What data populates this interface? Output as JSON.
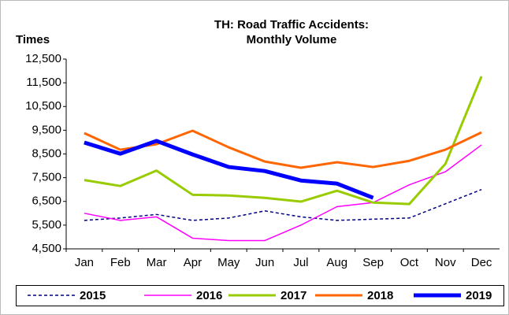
{
  "chart_data": {
    "type": "line",
    "title": [
      "TH: Road Traffic Accidents:",
      "Monthly Volume"
    ],
    "y_label": "Times",
    "categories": [
      "Jan",
      "Feb",
      "Mar",
      "Apr",
      "May",
      "Jun",
      "Jul",
      "Aug",
      "Sep",
      "Oct",
      "Nov",
      "Dec"
    ],
    "ylim": [
      4500,
      12500
    ],
    "yticks": [
      {
        "value": 4500,
        "label": "4,500"
      },
      {
        "value": 5500,
        "label": "5,500"
      },
      {
        "value": 6500,
        "label": "6,500"
      },
      {
        "value": 7500,
        "label": "7,500"
      },
      {
        "value": 8500,
        "label": "8,500"
      },
      {
        "value": 9500,
        "label": "9,500"
      },
      {
        "value": 10500,
        "label": "10,500"
      },
      {
        "value": 11500,
        "label": "11,500"
      },
      {
        "value": 12500,
        "label": "12,500"
      }
    ],
    "grid": false,
    "legend": "bottom",
    "series": [
      {
        "name": "2015",
        "color": "#000080",
        "dashed": true,
        "width": 1.5,
        "values": [
          5700,
          5800,
          5950,
          5700,
          5800,
          6100,
          5850,
          5700,
          5750,
          5800,
          6400,
          7000
        ]
      },
      {
        "name": "2016",
        "color": "#ff00ff",
        "dashed": false,
        "width": 1.5,
        "values": [
          6000,
          5700,
          5850,
          4950,
          4850,
          4850,
          5500,
          6280,
          6450,
          7200,
          7750,
          8880
        ]
      },
      {
        "name": "2017",
        "color": "#99cc00",
        "dashed": false,
        "width": 3,
        "values": [
          7400,
          7150,
          7800,
          6780,
          6750,
          6650,
          6490,
          6950,
          6450,
          6390,
          8080,
          11770
        ]
      },
      {
        "name": "2018",
        "color": "#ff6600",
        "dashed": false,
        "width": 3,
        "values": [
          9380,
          8680,
          8910,
          9480,
          8780,
          8180,
          7920,
          8150,
          7950,
          8210,
          8680,
          9410
        ]
      },
      {
        "name": "2019",
        "color": "#0000ff",
        "dashed": false,
        "width": 5,
        "values": [
          8980,
          8510,
          9050,
          8480,
          7950,
          7780,
          7380,
          7250,
          6650,
          null,
          null,
          null
        ]
      }
    ]
  }
}
